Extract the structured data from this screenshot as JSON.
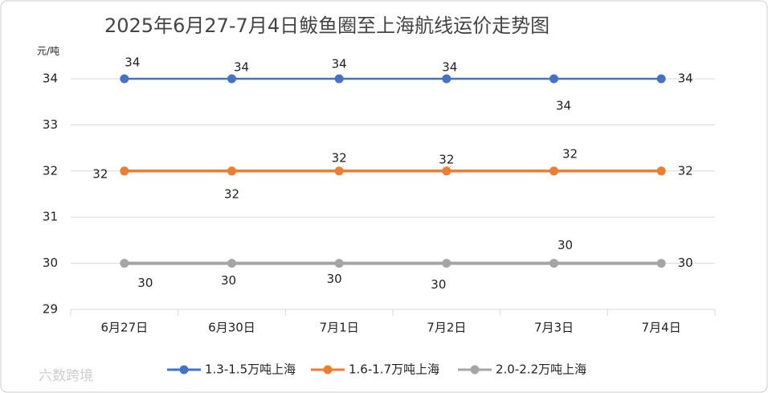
{
  "chart_data": {
    "type": "line",
    "title": "2025年6月27-7月4日鲅鱼圈至上海航线运价走势图",
    "y_label": "元/吨",
    "categories": [
      "6月27日",
      "6月30日",
      "7月1日",
      "7月2日",
      "7月3日",
      "7月4日"
    ],
    "series": [
      {
        "name": "1.3-1.5万吨上海",
        "color": "#4472c4",
        "values": [
          34,
          34,
          34,
          34,
          34,
          34
        ]
      },
      {
        "name": "1.6-1.7万吨上海",
        "color": "#ed7d31",
        "values": [
          32,
          32,
          32,
          32,
          32,
          32
        ]
      },
      {
        "name": "2.0-2.2万吨上海",
        "color": "#a5a5a5",
        "values": [
          30,
          30,
          30,
          30,
          30,
          30
        ]
      }
    ],
    "ylim": [
      29,
      34
    ],
    "yticks": [
      29,
      30,
      31,
      32,
      33,
      34
    ],
    "grid": true,
    "legend": "bottom"
  },
  "watermark": "六数跨境"
}
